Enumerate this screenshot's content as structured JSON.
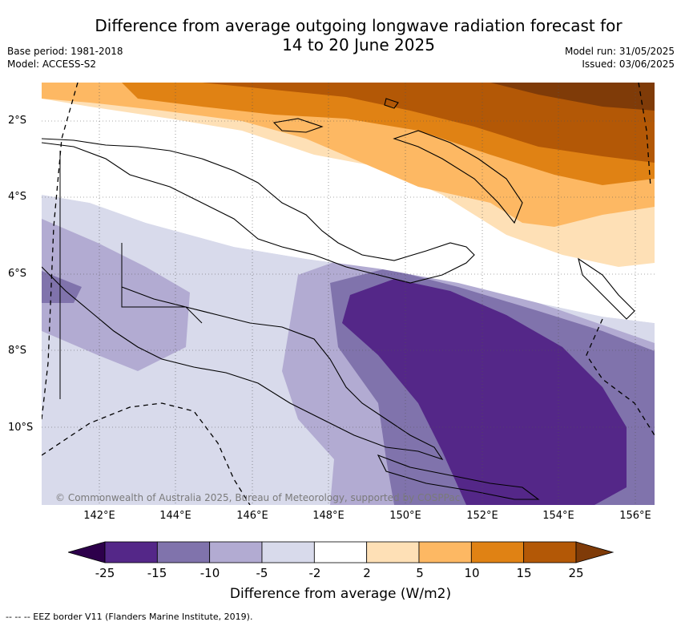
{
  "header": {
    "title_line1": "Difference from average outgoing longwave radiation forecast for",
    "title_line2": "14 to 20 June 2025",
    "base_period": "Base period: 1981-2018",
    "model": "Model: ACCESS-S2",
    "model_run": "Model run: 31/05/2025",
    "issued": "Issued: 03/06/2025"
  },
  "map": {
    "region": "Papua New Guinea",
    "lat_labels": [
      "2°S",
      "4°S",
      "6°S",
      "8°S",
      "10°S"
    ],
    "lon_labels": [
      "142°E",
      "144°E",
      "146°E",
      "148°E",
      "150°E",
      "152°E",
      "154°E",
      "156°E"
    ],
    "credit": "© Commonwealth of Australia 2025, Bureau of Meteorology, supported by COSPPac",
    "colors": {
      "lt_-15": "#3a1a5e",
      "-15_-10": "#542788",
      "-10_-5": "#8073ac",
      "-5_-2": "#b2abd2",
      "-2_2_low": "#d8daeb",
      "neutral": "#ffffff",
      "2_5": "#fee0b6",
      "5_10": "#fdb863",
      "10_15": "#e08214",
      "15_25": "#b35806",
      "gt_25": "#7f3b08"
    }
  },
  "colorbar": {
    "ticks": [
      "-25",
      "-15",
      "-10",
      "-5",
      "-2",
      "2",
      "5",
      "10",
      "15",
      "25"
    ],
    "colors": [
      "#542788",
      "#8073ac",
      "#b2abd2",
      "#d8daeb",
      "#ffffff",
      "#fee0b6",
      "#fdb863",
      "#e08214",
      "#b35806"
    ],
    "low_arrow_color": "#2d004b",
    "high_arrow_color": "#7f3b08",
    "label": "Difference from average (W/m2)"
  },
  "footer": {
    "legend": "-- --  -- EEZ border V11 (Flanders Marine Institute, 2019)."
  }
}
